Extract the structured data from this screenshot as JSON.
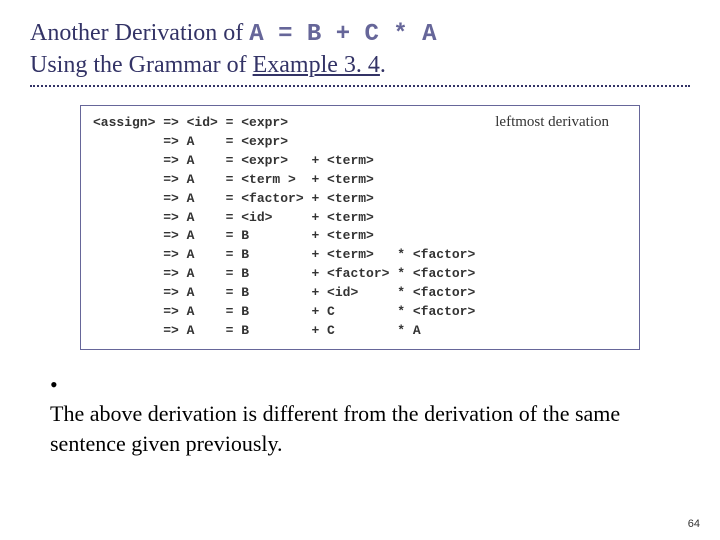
{
  "title": {
    "part1": "Another Derivation of ",
    "code": "A = B + C * A",
    "part2": "Using the Grammar of ",
    "linked": "Example 3. 4",
    "period": "."
  },
  "annotation": "leftmost derivation",
  "derivation": {
    "lhs": "<assign>",
    "rows": [
      {
        "arrow": "=>",
        "id": "<id>",
        "eq": "=",
        "col1": "<expr>",
        "plus": "",
        "col2": "",
        "star": "",
        "col3": ""
      },
      {
        "arrow": "=>",
        "id": "A",
        "eq": "=",
        "col1": "<expr>",
        "plus": "",
        "col2": "",
        "star": "",
        "col3": ""
      },
      {
        "arrow": "=>",
        "id": "A",
        "eq": "=",
        "col1": "<expr>",
        "plus": "+",
        "col2": "<term>",
        "star": "",
        "col3": ""
      },
      {
        "arrow": "=>",
        "id": "A",
        "eq": "=",
        "col1": "<term >",
        "plus": "+",
        "col2": "<term>",
        "star": "",
        "col3": ""
      },
      {
        "arrow": "=>",
        "id": "A",
        "eq": "=",
        "col1": "<factor>",
        "plus": "+",
        "col2": "<term>",
        "star": "",
        "col3": ""
      },
      {
        "arrow": "=>",
        "id": "A",
        "eq": "=",
        "col1": "<id>",
        "plus": "+",
        "col2": "<term>",
        "star": "",
        "col3": ""
      },
      {
        "arrow": "=>",
        "id": "A",
        "eq": "=",
        "col1": "B",
        "plus": "+",
        "col2": "<term>",
        "star": "",
        "col3": ""
      },
      {
        "arrow": "=>",
        "id": "A",
        "eq": "=",
        "col1": "B",
        "plus": "+",
        "col2": "<term>",
        "star": "*",
        "col3": "<factor>"
      },
      {
        "arrow": "=>",
        "id": "A",
        "eq": "=",
        "col1": "B",
        "plus": "+",
        "col2": "<factor>",
        "star": "*",
        "col3": "<factor>"
      },
      {
        "arrow": "=>",
        "id": "A",
        "eq": "=",
        "col1": "B",
        "plus": "+",
        "col2": "<id>",
        "star": "*",
        "col3": "<factor>"
      },
      {
        "arrow": "=>",
        "id": "A",
        "eq": "=",
        "col1": "B",
        "plus": "+",
        "col2": "C",
        "star": "*",
        "col3": "<factor>"
      },
      {
        "arrow": "=>",
        "id": "A",
        "eq": "=",
        "col1": "B",
        "plus": "+",
        "col2": "C",
        "star": "*",
        "col3": "A"
      }
    ]
  },
  "bullet": "The above derivation is different from the derivation of the same sentence given previously.",
  "page_number": "64",
  "colors": {
    "title_text": "#333366",
    "title_code": "#666699",
    "box_border": "#666699",
    "body_text": "#000000",
    "background": "#ffffff"
  }
}
